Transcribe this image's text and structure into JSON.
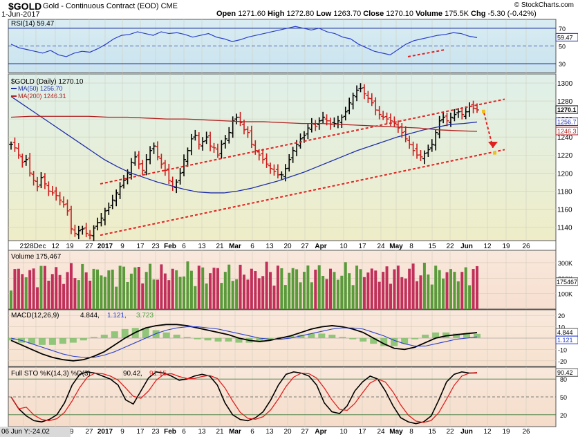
{
  "header": {
    "symbol": "$GOLD",
    "description": "Gold - Continuous Contract (EOD)",
    "exchange": "CME",
    "date": "1-Jun-2017",
    "open_label": "Open",
    "open": "1271.60",
    "high_label": "High",
    "high": "1272.80",
    "low_label": "Low",
    "low": "1263.70",
    "close_label": "Close",
    "close": "1270.10",
    "volume_label": "Volume",
    "volume": "175.5K",
    "chg_label": "Chg",
    "chg": "-5.30 (-0.42%)",
    "url": "© StockCharts.com"
  },
  "cursor_readout": "06 Jun Y:-24.02",
  "colors": {
    "price_panel_bg": "#efedc8",
    "rsi_panel_bg": "#c9e3ef",
    "volume_panel_bg": "#f7dfd0",
    "macd_panel_bg": "#f7e2cf",
    "sto_panel_bg": "#f5dcc9",
    "up_volume": "#5a9a3a",
    "down_volume": "#c0305a",
    "ma50": "#1f2fa8",
    "ma200": "#b02020",
    "trend": "#e02020",
    "bars": "#000000",
    "rsi": "#2a3fcc",
    "stoK": "#000000",
    "stoD": "#e02020"
  },
  "chart_data": [
    {
      "type": "ohlc",
      "panel": "price",
      "legend": [
        "$GOLD (Daily) 1270.10",
        "MA(50) 1256.70",
        "MA(200) 1246.31"
      ],
      "series": [
        {
          "name": "$GOLD (Daily)",
          "last": 1270.1
        },
        {
          "name": "MA(50)",
          "last": 1256.7
        },
        {
          "name": "MA(200)",
          "last": 1246.31
        }
      ],
      "ylim": [
        1125,
        1310
      ],
      "y_ticks": [
        1140,
        1160,
        1180,
        1200,
        1220,
        1240,
        1260,
        1280,
        1300
      ],
      "right_labels": [
        "1270.1",
        "1256.7",
        "1246.3"
      ],
      "x_ticks": [
        "21",
        "28Dec",
        "12",
        "19",
        "27",
        "2017",
        "9",
        "17",
        "23",
        "Feb",
        "6",
        "13",
        "21",
        "Mar",
        "6",
        "13",
        "20",
        "27",
        "Apr",
        "10",
        "17",
        "24",
        "May",
        "8",
        "15",
        "22",
        "Jun",
        "12",
        "19",
        "26"
      ],
      "closes": [
        1232,
        1228,
        1220,
        1212,
        1215,
        1200,
        1192,
        1185,
        1195,
        1188,
        1180,
        1178,
        1175,
        1170,
        1165,
        1158,
        1138,
        1133,
        1136,
        1138,
        1133,
        1131,
        1139,
        1145,
        1150,
        1158,
        1162,
        1170,
        1178,
        1185,
        1192,
        1200,
        1212,
        1218,
        1210,
        1203,
        1215,
        1225,
        1230,
        1218,
        1210,
        1203,
        1192,
        1185,
        1190,
        1200,
        1215,
        1225,
        1238,
        1242,
        1232,
        1235,
        1240,
        1230,
        1228,
        1220,
        1232,
        1238,
        1245,
        1258,
        1262,
        1256,
        1248,
        1245,
        1232,
        1225,
        1220,
        1215,
        1210,
        1205,
        1202,
        1198,
        1198,
        1205,
        1215,
        1225,
        1232,
        1238,
        1242,
        1250,
        1255,
        1252,
        1258,
        1262,
        1258,
        1254,
        1255,
        1258,
        1262,
        1268,
        1278,
        1286,
        1292,
        1294,
        1288,
        1283,
        1278,
        1270,
        1265,
        1262,
        1260,
        1258,
        1255,
        1250,
        1245,
        1238,
        1232,
        1225,
        1220,
        1218,
        1222,
        1226,
        1232,
        1245,
        1258,
        1262,
        1258,
        1262,
        1265,
        1268,
        1265,
        1268,
        1274,
        1272,
        1270.1
      ],
      "ma50": [
        1285,
        1275,
        1265,
        1255,
        1245,
        1235,
        1225,
        1215,
        1207,
        1200,
        1195,
        1190,
        1186,
        1182,
        1179,
        1178,
        1178,
        1180,
        1183,
        1187,
        1191,
        1196,
        1201,
        1207,
        1213,
        1219,
        1225,
        1230,
        1235,
        1240,
        1244,
        1248,
        1251,
        1254,
        1255,
        1256.7
      ],
      "ma200": [
        1262,
        1263,
        1263,
        1263,
        1263,
        1262,
        1262,
        1261,
        1260,
        1260,
        1259,
        1258,
        1257,
        1257,
        1256,
        1255,
        1255,
        1254,
        1253,
        1252,
        1251,
        1250,
        1248,
        1247,
        1246.31
      ],
      "trend_upper": [
        [
          1,
          1188
        ],
        [
          36,
          1282
        ]
      ],
      "trend_lower": [
        [
          1,
          1131
        ],
        [
          36,
          1226
        ]
      ],
      "projection": [
        [
          34,
          1270
        ],
        [
          35,
          1222
        ]
      ]
    },
    {
      "type": "line",
      "panel": "RSI",
      "legend": "RSI(14) 59.47",
      "series": [
        {
          "name": "RSI(14)",
          "last": 59.47
        }
      ],
      "ylim": [
        20,
        80
      ],
      "y_ticks": [
        30,
        50,
        70
      ],
      "right_label": "59.47"
    },
    {
      "type": "bar",
      "panel": "Volume",
      "legend": "Volume 175,467",
      "series": [
        {
          "name": "Volume",
          "last": 175467
        }
      ],
      "ylim": [
        0,
        380000
      ],
      "y_ticks": [
        "100K",
        "200K",
        "300K"
      ],
      "right_label": "175467"
    },
    {
      "type": "line",
      "panel": "MACD",
      "legend": [
        "MACD(12,26,9)",
        "4.844,",
        "1.121,",
        "3.723"
      ],
      "series": [
        {
          "name": "MACD",
          "last": 4.844
        },
        {
          "name": "Signal",
          "last": 1.121
        },
        {
          "name": "Histogram",
          "last": 3.723
        }
      ],
      "ylim": [
        -25,
        25
      ],
      "y_ticks": [
        -20,
        -10,
        10,
        20
      ],
      "right_labels": [
        "4.844",
        "1.121"
      ]
    },
    {
      "type": "line",
      "panel": "Full STO",
      "legend": [
        "Full STO %K(14,3) %D(3)",
        "90.42,",
        "91.15"
      ],
      "series": [
        {
          "name": "%K",
          "last": 90.42
        },
        {
          "name": "%D",
          "last": 91.15
        }
      ],
      "ylim": [
        0,
        100
      ],
      "y_ticks": [
        20,
        50,
        80
      ],
      "right_label": "90.42"
    }
  ]
}
